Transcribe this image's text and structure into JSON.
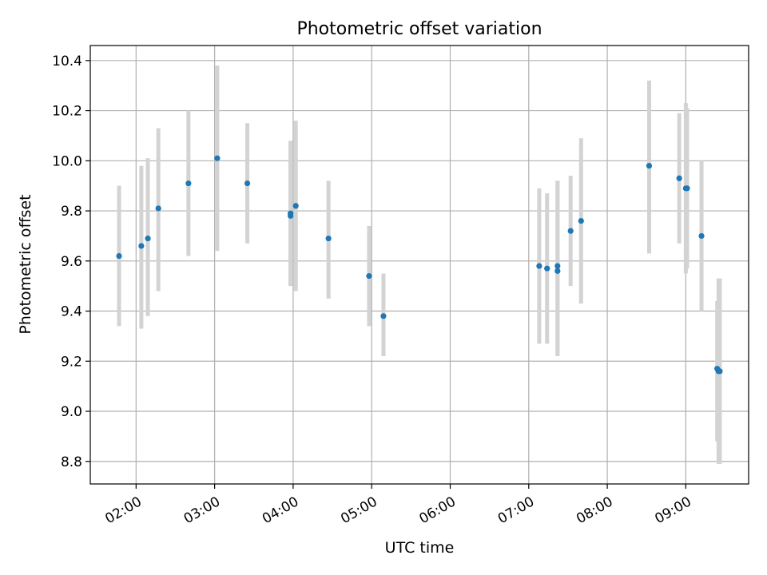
{
  "chart_data": {
    "type": "scatter",
    "title": "Photometric offset variation",
    "xlabel": "UTC time",
    "ylabel": "Photometric offset",
    "x_unit": "UTC",
    "xlim": [
      "01:25",
      "09:48"
    ],
    "ylim": [
      8.71,
      10.46
    ],
    "xticks": [
      "02:00",
      "03:00",
      "04:00",
      "05:00",
      "06:00",
      "07:00",
      "08:00",
      "09:00"
    ],
    "yticks": [
      8.8,
      9.0,
      9.2,
      9.4,
      9.6,
      9.8,
      10.0,
      10.2,
      10.4
    ],
    "grid": true,
    "marker_color": "#1f77b4",
    "errorbar_color": "#d3d3d3",
    "points": [
      {
        "time": "01:47",
        "y": 9.62,
        "low": 9.34,
        "high": 9.9
      },
      {
        "time": "02:04",
        "y": 9.66,
        "low": 9.33,
        "high": 9.98
      },
      {
        "time": "02:09",
        "y": 9.69,
        "low": 9.38,
        "high": 10.01
      },
      {
        "time": "02:17",
        "y": 9.81,
        "low": 9.48,
        "high": 10.13
      },
      {
        "time": "02:40",
        "y": 9.91,
        "low": 9.62,
        "high": 10.2
      },
      {
        "time": "03:02",
        "y": 10.01,
        "low": 9.64,
        "high": 10.38
      },
      {
        "time": "03:25",
        "y": 9.91,
        "low": 9.67,
        "high": 10.15
      },
      {
        "time": "03:58",
        "y": 9.79,
        "low": 9.5,
        "high": 10.08
      },
      {
        "time": "03:58",
        "y": 9.78,
        "low": 9.5,
        "high": 10.07
      },
      {
        "time": "04:02",
        "y": 9.82,
        "low": 9.48,
        "high": 10.16
      },
      {
        "time": "04:27",
        "y": 9.69,
        "low": 9.45,
        "high": 9.92
      },
      {
        "time": "04:58",
        "y": 9.54,
        "low": 9.34,
        "high": 9.74
      },
      {
        "time": "05:09",
        "y": 9.38,
        "low": 9.22,
        "high": 9.55
      },
      {
        "time": "07:08",
        "y": 9.58,
        "low": 9.27,
        "high": 9.89
      },
      {
        "time": "07:14",
        "y": 9.57,
        "low": 9.27,
        "high": 9.87
      },
      {
        "time": "07:22",
        "y": 9.58,
        "low": 9.22,
        "high": 9.92
      },
      {
        "time": "07:22",
        "y": 9.56,
        "low": 9.22,
        "high": 9.92
      },
      {
        "time": "07:32",
        "y": 9.72,
        "low": 9.5,
        "high": 9.94
      },
      {
        "time": "07:40",
        "y": 9.76,
        "low": 9.43,
        "high": 10.09
      },
      {
        "time": "08:32",
        "y": 9.98,
        "low": 9.63,
        "high": 10.32
      },
      {
        "time": "08:55",
        "y": 9.93,
        "low": 9.67,
        "high": 10.19
      },
      {
        "time": "09:00",
        "y": 9.89,
        "low": 9.55,
        "high": 10.23
      },
      {
        "time": "09:01",
        "y": 9.89,
        "low": 9.57,
        "high": 10.21
      },
      {
        "time": "09:12",
        "y": 9.7,
        "low": 9.4,
        "high": 10.0
      },
      {
        "time": "09:24",
        "y": 9.17,
        "low": 8.88,
        "high": 9.44
      },
      {
        "time": "09:25",
        "y": 9.16,
        "low": 8.79,
        "high": 9.53
      },
      {
        "time": "09:26",
        "y": 9.16,
        "low": 8.79,
        "high": 9.53
      }
    ]
  }
}
